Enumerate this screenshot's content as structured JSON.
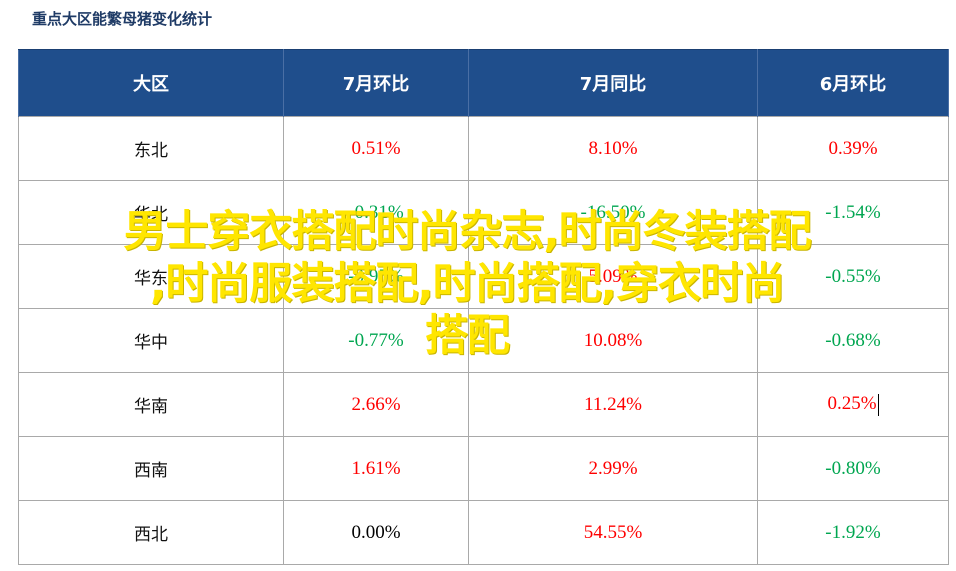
{
  "caption": "重点大区能繁母猪变化统计",
  "table": {
    "headers": [
      "大区",
      "7月环比",
      "7月同比",
      "6月环比"
    ],
    "rows": [
      {
        "region": "东北",
        "mom_jul": "0.51%",
        "yoy_jul": "8.10%",
        "mom_jun": "0.39%"
      },
      {
        "region": "华北",
        "mom_jul": "-0.31%",
        "yoy_jul": "-16.50%",
        "mom_jun": "-1.54%"
      },
      {
        "region": "华东",
        "mom_jul": "-0.95%",
        "yoy_jul": "5.09%",
        "mom_jun": "-0.55%"
      },
      {
        "region": "华中",
        "mom_jul": "-0.77%",
        "yoy_jul": "10.08%",
        "mom_jun": "-0.68%"
      },
      {
        "region": "华南",
        "mom_jul": "2.66%",
        "yoy_jul": "11.24%",
        "mom_jun": "0.25%"
      },
      {
        "region": "西南",
        "mom_jul": "1.61%",
        "yoy_jul": "2.99%",
        "mom_jun": "-0.80%"
      },
      {
        "region": "西北",
        "mom_jul": "0.00%",
        "yoy_jul": "54.55%",
        "mom_jun": "-1.92%"
      }
    ]
  },
  "colors": {
    "header_bg": "#1f4e8c",
    "positive": "#ff0000",
    "negative": "#00a650",
    "watermark": "#ffe600"
  },
  "watermark": {
    "line1": "男士穿衣搭配时尚杂志,时尚冬装搭配",
    "line2": ",时尚服装搭配,时尚搭配,穿衣时尚",
    "line3": "搭配"
  }
}
